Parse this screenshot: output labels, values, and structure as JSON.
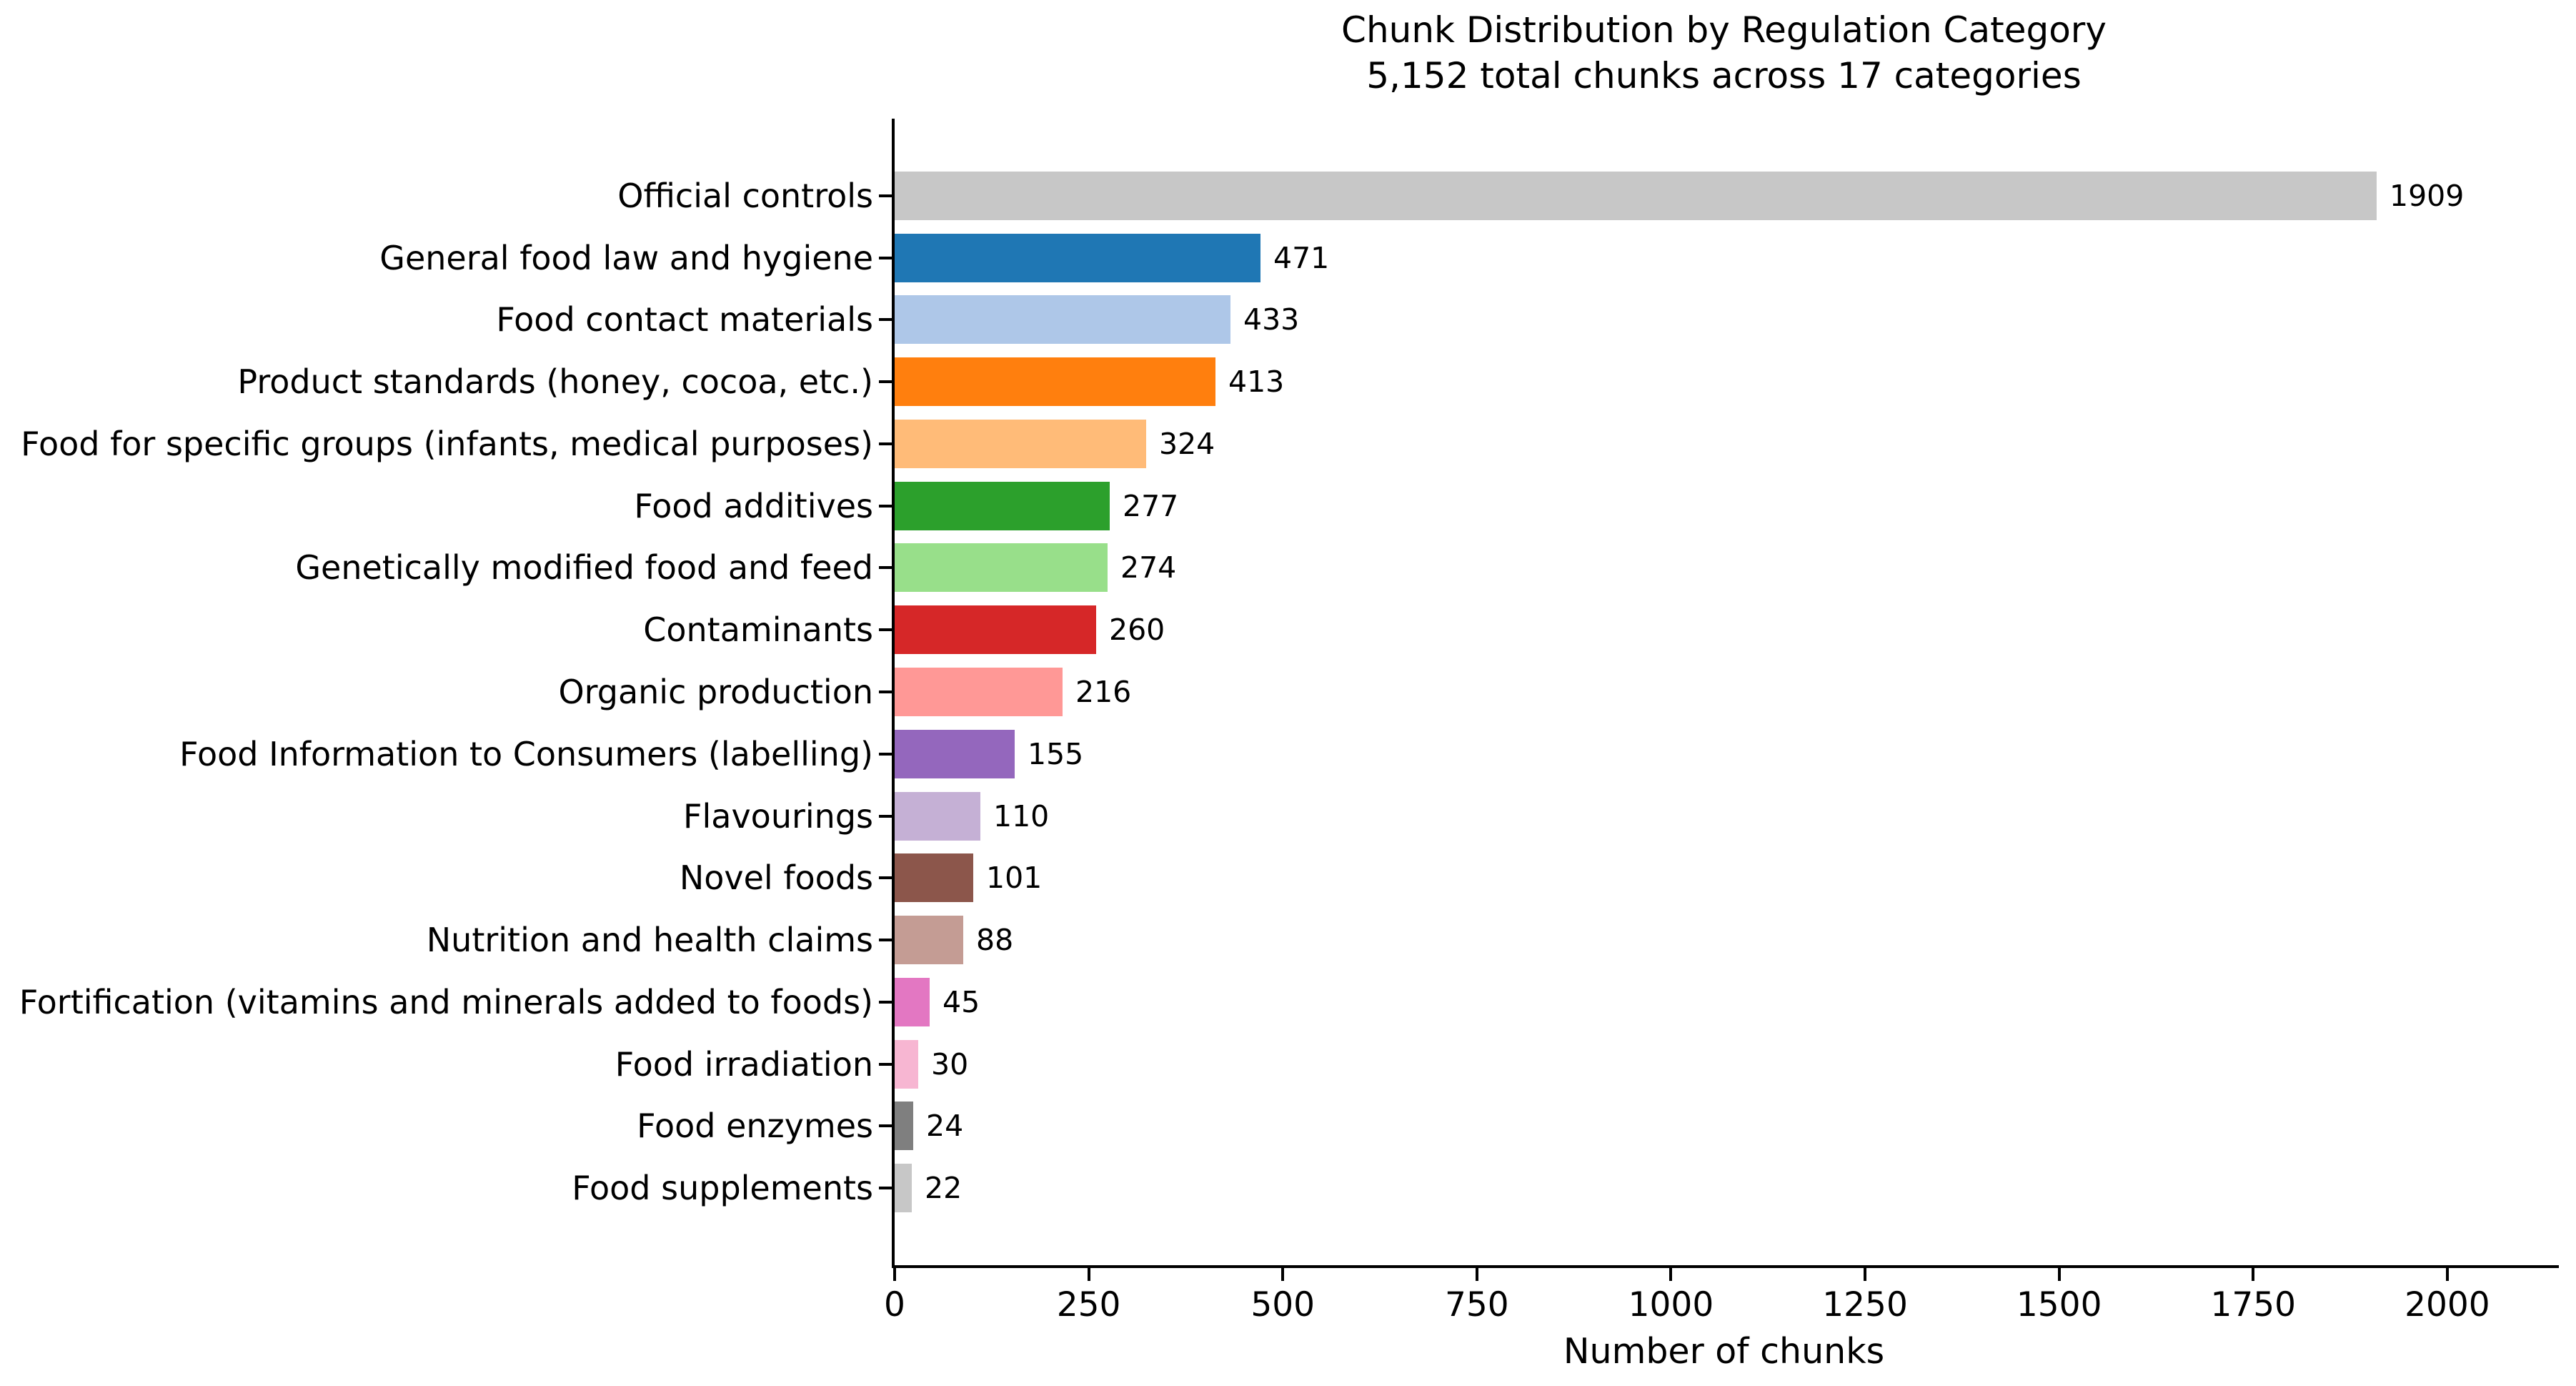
{
  "chart_data": {
    "type": "bar",
    "orientation": "horizontal",
    "title": "Chunk Distribution by Regulation Category",
    "subtitle": "5,152 total chunks across 17 categories",
    "xlabel": "Number of chunks",
    "xlim": [
      0,
      2140
    ],
    "xticks": [
      0,
      250,
      500,
      750,
      1000,
      1250,
      1500,
      1750,
      2000
    ],
    "grid": false,
    "legend": "none",
    "value_labels_shown": true,
    "categories": [
      "Official controls",
      "General food law and hygiene",
      "Food contact materials",
      "Product standards (honey, cocoa, etc.)",
      "Food for specific groups (infants, medical purposes)",
      "Food additives",
      "Genetically modified food and feed",
      "Contaminants",
      "Organic production",
      "Food Information to Consumers (labelling)",
      "Flavourings",
      "Novel foods",
      "Nutrition and health claims",
      "Fortification (vitamins and minerals added to foods)",
      "Food irradiation",
      "Food enzymes",
      "Food supplements"
    ],
    "values": [
      1909,
      471,
      433,
      413,
      324,
      277,
      274,
      260,
      216,
      155,
      110,
      101,
      88,
      45,
      30,
      24,
      22
    ],
    "colors": [
      "#c7c7c7",
      "#1f77b4",
      "#aec7e8",
      "#ff7f0e",
      "#ffbb78",
      "#2ca02c",
      "#98df8a",
      "#d62728",
      "#ff9896",
      "#9467bd",
      "#c5b0d5",
      "#8c564b",
      "#c49c94",
      "#e377c2",
      "#f7b6d2",
      "#7f7f7f",
      "#c7c7c7"
    ],
    "axis_color": "#000000",
    "text_color": "#000000",
    "background_color": "#ffffff"
  }
}
